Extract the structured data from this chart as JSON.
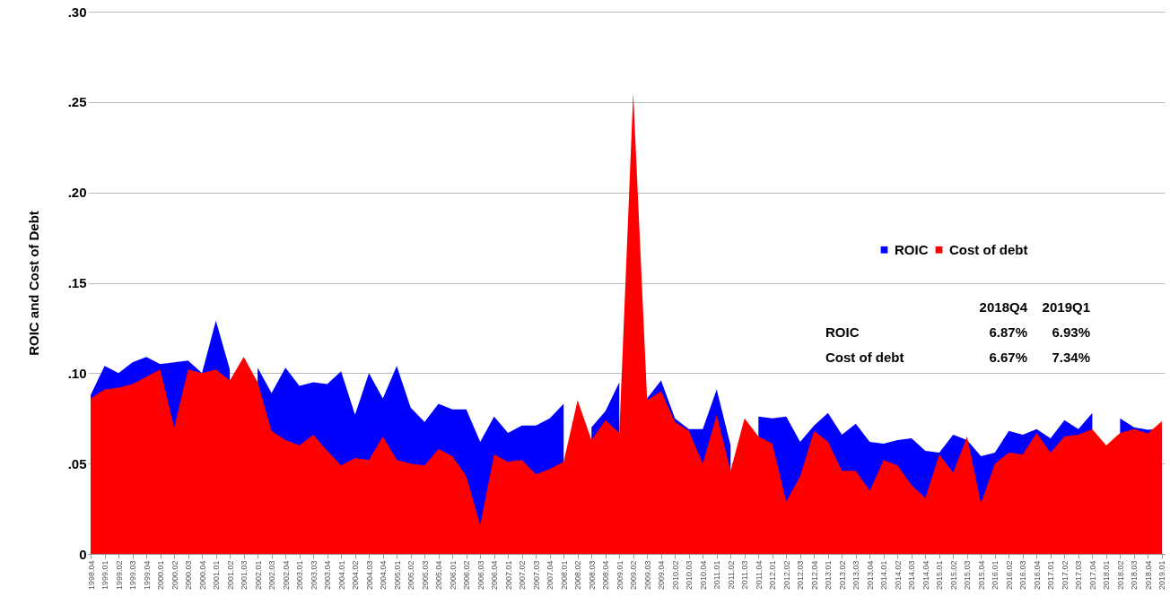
{
  "chart_data": {
    "type": "area",
    "ylabel": "ROIC and Cost of Debt",
    "categories": [
      "1998.04",
      "1999.01",
      "1999.02",
      "1999.03",
      "1999.04",
      "2000.01",
      "2000.02",
      "2000.03",
      "2000.04",
      "2001.01",
      "2001.02",
      "2001.03",
      "2002.01",
      "2002.03",
      "2002.04",
      "2003.01",
      "2003.03",
      "2003.04",
      "2004.01",
      "2004.02",
      "2004.03",
      "2004.04",
      "2005.01",
      "2005.02",
      "2005.03",
      "2005.04",
      "2006.01",
      "2006.02",
      "2006.03",
      "2006.04",
      "2007.01",
      "2007.02",
      "2007.03",
      "2007.04",
      "2008.01",
      "2008.02",
      "2008.03",
      "2008.04",
      "2009.01",
      "2009.02",
      "2009.03",
      "2009.04",
      "2010.02",
      "2010.03",
      "2010.04",
      "2011.01",
      "2011.02",
      "2011.03",
      "2011.04",
      "2012.01",
      "2012.02",
      "2012.03",
      "2012.04",
      "2013.01",
      "2013.02",
      "2013.03",
      "2013.04",
      "2014.01",
      "2014.02",
      "2014.03",
      "2014.04",
      "2015.01",
      "2015.02",
      "2015.03",
      "2015.04",
      "2016.01",
      "2016.02",
      "2016.03",
      "2016.04",
      "2017.01",
      "2017.02",
      "2017.03",
      "2017.04",
      "2018.01",
      "2018.02",
      "2018.03",
      "2018.04",
      "2019.01"
    ],
    "series": [
      {
        "name": "ROIC",
        "color": "#0000ff",
        "values": [
          0.088,
          0.104,
          0.1,
          0.106,
          0.109,
          0.105,
          0.106,
          0.107,
          0.1,
          0.129,
          0.102,
          null,
          0.103,
          0.089,
          0.103,
          0.093,
          0.095,
          0.094,
          0.101,
          0.077,
          0.1,
          0.086,
          0.104,
          0.081,
          0.073,
          0.083,
          0.08,
          0.08,
          0.062,
          0.076,
          0.067,
          0.071,
          0.071,
          0.075,
          0.083,
          null,
          0.07,
          0.079,
          0.095,
          null,
          0.086,
          0.096,
          0.075,
          0.069,
          0.069,
          0.091,
          0.06,
          null,
          0.076,
          0.075,
          0.076,
          0.062,
          0.071,
          0.078,
          0.066,
          0.072,
          0.062,
          0.061,
          0.063,
          0.064,
          0.057,
          0.056,
          0.066,
          0.063,
          0.054,
          0.056,
          0.068,
          0.066,
          0.069,
          0.064,
          0.074,
          0.069,
          0.078,
          null,
          0.075,
          0.07,
          0.0687,
          0.0693
        ]
      },
      {
        "name": "Cost of debt",
        "color": "#ff0000",
        "values": [
          0.086,
          0.091,
          0.092,
          0.094,
          0.098,
          0.102,
          0.07,
          0.102,
          0.1,
          0.102,
          0.096,
          0.109,
          0.095,
          0.068,
          0.063,
          0.06,
          0.066,
          0.057,
          0.049,
          0.053,
          0.052,
          0.065,
          0.052,
          0.05,
          0.049,
          0.058,
          0.054,
          0.043,
          0.016,
          0.055,
          0.051,
          0.052,
          0.044,
          0.047,
          0.051,
          0.085,
          0.063,
          0.074,
          0.067,
          0.255,
          0.085,
          0.09,
          0.073,
          0.068,
          0.05,
          0.077,
          0.046,
          0.075,
          0.065,
          0.061,
          0.029,
          0.043,
          0.068,
          0.062,
          0.046,
          0.046,
          0.035,
          0.052,
          0.049,
          0.038,
          0.031,
          0.055,
          0.045,
          0.065,
          0.028,
          0.05,
          0.056,
          0.055,
          0.067,
          0.056,
          0.065,
          0.066,
          0.069,
          0.06,
          0.067,
          0.069,
          0.0667,
          0.0734
        ]
      }
    ],
    "ylim": [
      0,
      0.3
    ],
    "yticks": [
      {
        "value": 0,
        "label": "0"
      },
      {
        "value": 0.05,
        "label": ".05"
      },
      {
        "value": 0.1,
        "label": ".10"
      },
      {
        "value": 0.15,
        "label": ".15"
      },
      {
        "value": 0.2,
        "label": ".20"
      },
      {
        "value": 0.25,
        "label": ".25"
      },
      {
        "value": 0.3,
        "label": ".30"
      }
    ],
    "grid": "y",
    "legend": "right",
    "annotations": [
      "2018Q4",
      "2019Q1",
      "ROIC",
      "6.87%",
      "6.93%",
      "Cost of debt",
      "6.67%",
      "7.34%"
    ]
  }
}
